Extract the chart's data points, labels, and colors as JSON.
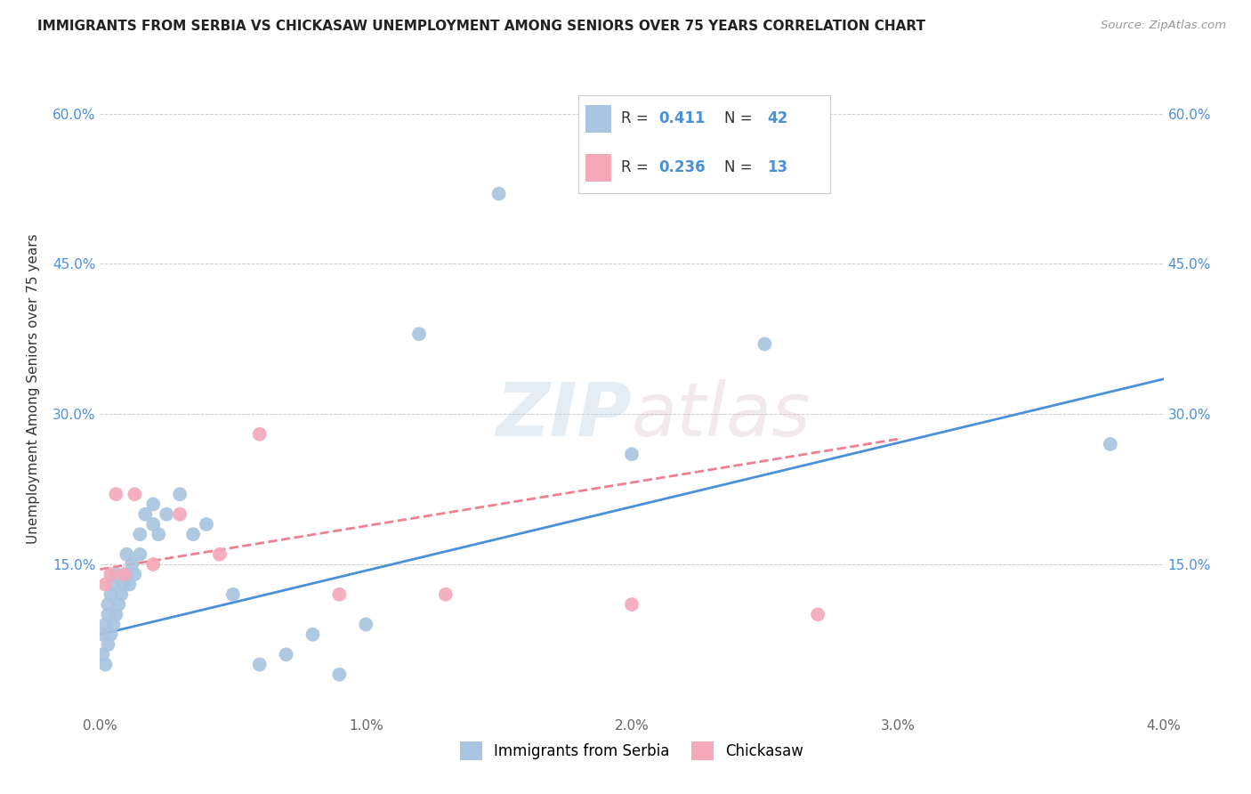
{
  "title": "IMMIGRANTS FROM SERBIA VS CHICKASAW UNEMPLOYMENT AMONG SENIORS OVER 75 YEARS CORRELATION CHART",
  "source": "Source: ZipAtlas.com",
  "ylabel": "Unemployment Among Seniors over 75 years",
  "xlim": [
    0.0,
    0.04
  ],
  "ylim": [
    0.0,
    0.65
  ],
  "x_ticks": [
    0.0,
    0.01,
    0.02,
    0.03,
    0.04
  ],
  "x_tick_labels": [
    "0.0%",
    "1.0%",
    "2.0%",
    "3.0%",
    "4.0%"
  ],
  "y_ticks": [
    0.0,
    0.15,
    0.3,
    0.45,
    0.6
  ],
  "y_tick_labels": [
    "",
    "15.0%",
    "30.0%",
    "45.0%",
    "60.0%"
  ],
  "legend_labels": [
    "Immigrants from Serbia",
    "Chickasaw"
  ],
  "r_serbia": 0.411,
  "n_serbia": 42,
  "r_chickasaw": 0.236,
  "n_chickasaw": 13,
  "serbia_color": "#a8c4e0",
  "chickasaw_color": "#f4a8b8",
  "serbia_line_color": "#4a90d9",
  "chickasaw_line_color": "#f08090",
  "watermark_zip": "ZIP",
  "watermark_atlas": "atlas",
  "serbia_x": [
    0.0001,
    0.0001,
    0.0002,
    0.0002,
    0.0003,
    0.0003,
    0.0003,
    0.0004,
    0.0004,
    0.0005,
    0.0005,
    0.0006,
    0.0006,
    0.0007,
    0.0008,
    0.0009,
    0.001,
    0.001,
    0.0011,
    0.0012,
    0.0013,
    0.0015,
    0.0015,
    0.0017,
    0.002,
    0.002,
    0.0022,
    0.0025,
    0.003,
    0.0035,
    0.004,
    0.005,
    0.006,
    0.007,
    0.008,
    0.009,
    0.01,
    0.012,
    0.015,
    0.02,
    0.025,
    0.038
  ],
  "serbia_y": [
    0.06,
    0.08,
    0.05,
    0.09,
    0.07,
    0.1,
    0.11,
    0.08,
    0.12,
    0.09,
    0.13,
    0.1,
    0.14,
    0.11,
    0.12,
    0.13,
    0.14,
    0.16,
    0.13,
    0.15,
    0.14,
    0.16,
    0.18,
    0.2,
    0.19,
    0.21,
    0.18,
    0.2,
    0.22,
    0.18,
    0.19,
    0.12,
    0.05,
    0.06,
    0.08,
    0.04,
    0.09,
    0.38,
    0.52,
    0.26,
    0.37,
    0.27
  ],
  "chickasaw_x": [
    0.0002,
    0.0004,
    0.0006,
    0.0009,
    0.0013,
    0.002,
    0.003,
    0.0045,
    0.006,
    0.009,
    0.013,
    0.02,
    0.027
  ],
  "chickasaw_y": [
    0.13,
    0.14,
    0.22,
    0.14,
    0.22,
    0.15,
    0.2,
    0.16,
    0.28,
    0.12,
    0.12,
    0.11,
    0.1
  ],
  "serbia_line_x": [
    0.0,
    0.04
  ],
  "serbia_line_y": [
    0.08,
    0.335
  ],
  "chickasaw_line_x": [
    0.0,
    0.03
  ],
  "chickasaw_line_y": [
    0.145,
    0.275
  ]
}
